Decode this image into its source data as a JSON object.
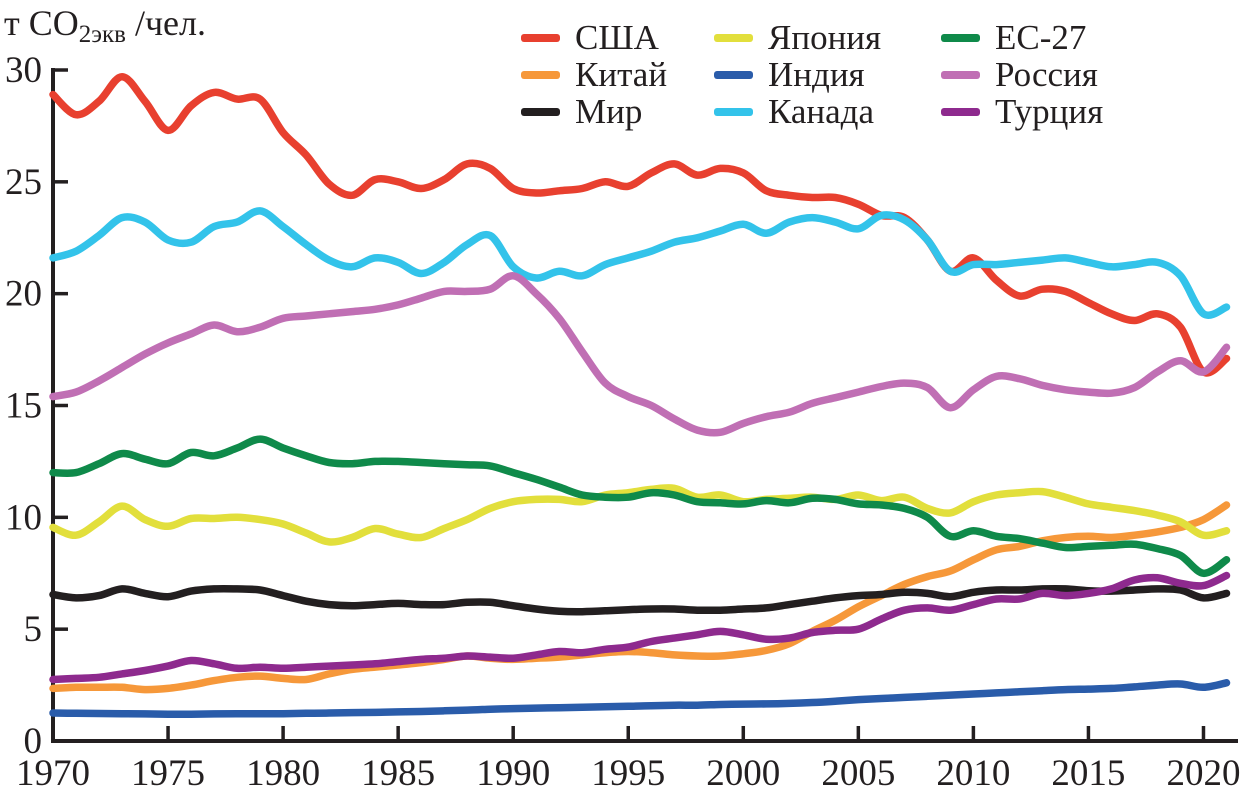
{
  "unit_label": {
    "prefix": "т CO",
    "subscript": "2экв",
    "suffix": " /чел."
  },
  "legend": {
    "items": [
      {
        "label": "США",
        "color": "#e8402f"
      },
      {
        "label": "Китай",
        "color": "#f6983a"
      },
      {
        "label": "Мир",
        "color": "#231f20"
      },
      {
        "label": "Япония",
        "color": "#e2df3c"
      },
      {
        "label": "Индия",
        "color": "#2a5caa"
      },
      {
        "label": "Канада",
        "color": "#33c3ea"
      },
      {
        "label": "ЕС-27",
        "color": "#0f8a4a"
      },
      {
        "label": "Россия",
        "color": "#c06fb4"
      },
      {
        "label": "Турция",
        "color": "#8e2a8e"
      }
    ]
  },
  "chart_data": {
    "type": "line",
    "title": "",
    "xlabel": "",
    "ylabel": "т CO2экв/чел.",
    "xlim": [
      1970,
      2021.5
    ],
    "ylim": [
      0,
      30
    ],
    "x_ticks": [
      1970,
      1975,
      1980,
      1985,
      1990,
      1995,
      2000,
      2005,
      2010,
      2015,
      2020
    ],
    "y_ticks": [
      0,
      5,
      10,
      15,
      20,
      25,
      30
    ],
    "grid": false,
    "legend_position": "top",
    "x": [
      1970,
      1971,
      1972,
      1973,
      1974,
      1975,
      1976,
      1977,
      1978,
      1979,
      1980,
      1981,
      1982,
      1983,
      1984,
      1985,
      1986,
      1987,
      1988,
      1989,
      1990,
      1991,
      1992,
      1993,
      1994,
      1995,
      1996,
      1997,
      1998,
      1999,
      2000,
      2001,
      2002,
      2003,
      2004,
      2005,
      2006,
      2007,
      2008,
      2009,
      2010,
      2011,
      2012,
      2013,
      2014,
      2015,
      2016,
      2017,
      2018,
      2019,
      2020,
      2021
    ],
    "draw_order": [
      "Индия",
      "Китай",
      "Мир",
      "Япония",
      "ЕС-27",
      "Турция",
      "США",
      "Канада",
      "Россия"
    ],
    "series": [
      {
        "name": "США",
        "color": "#e8402f",
        "values": [
          28.9,
          28.0,
          28.6,
          29.7,
          28.6,
          27.3,
          28.4,
          29.0,
          28.7,
          28.7,
          27.2,
          26.2,
          24.9,
          24.4,
          25.1,
          25.0,
          24.7,
          25.1,
          25.8,
          25.6,
          24.7,
          24.5,
          24.6,
          24.7,
          25.0,
          24.8,
          25.4,
          25.8,
          25.3,
          25.6,
          25.4,
          24.6,
          24.4,
          24.3,
          24.3,
          24.0,
          23.5,
          23.4,
          22.4,
          21.0,
          21.6,
          20.6,
          19.9,
          20.2,
          20.1,
          19.6,
          19.1,
          18.8,
          19.1,
          18.5,
          16.5,
          17.1
        ]
      },
      {
        "name": "Китай",
        "color": "#f6983a",
        "values": [
          2.35,
          2.4,
          2.4,
          2.4,
          2.3,
          2.35,
          2.5,
          2.7,
          2.85,
          2.9,
          2.8,
          2.75,
          3.0,
          3.2,
          3.3,
          3.4,
          3.5,
          3.65,
          3.8,
          3.7,
          3.65,
          3.7,
          3.75,
          3.85,
          3.95,
          4.0,
          3.95,
          3.85,
          3.8,
          3.8,
          3.9,
          4.05,
          4.35,
          4.9,
          5.4,
          6.0,
          6.5,
          7.0,
          7.35,
          7.6,
          8.1,
          8.55,
          8.7,
          8.95,
          9.1,
          9.15,
          9.1,
          9.2,
          9.35,
          9.55,
          9.9,
          10.55
        ]
      },
      {
        "name": "Мир",
        "color": "#231f20",
        "values": [
          6.55,
          6.4,
          6.5,
          6.8,
          6.6,
          6.45,
          6.7,
          6.8,
          6.8,
          6.75,
          6.5,
          6.25,
          6.1,
          6.05,
          6.1,
          6.15,
          6.1,
          6.1,
          6.2,
          6.2,
          6.05,
          5.9,
          5.8,
          5.78,
          5.82,
          5.87,
          5.9,
          5.9,
          5.85,
          5.85,
          5.9,
          5.95,
          6.1,
          6.25,
          6.4,
          6.5,
          6.55,
          6.65,
          6.6,
          6.45,
          6.65,
          6.75,
          6.75,
          6.8,
          6.8,
          6.72,
          6.7,
          6.75,
          6.8,
          6.75,
          6.4,
          6.6
        ]
      },
      {
        "name": "Япония",
        "color": "#e2df3c",
        "values": [
          9.55,
          9.2,
          9.8,
          10.5,
          9.9,
          9.6,
          9.95,
          9.95,
          10.0,
          9.9,
          9.7,
          9.3,
          8.9,
          9.1,
          9.5,
          9.25,
          9.1,
          9.5,
          9.9,
          10.4,
          10.7,
          10.8,
          10.8,
          10.7,
          11.0,
          11.1,
          11.25,
          11.3,
          10.9,
          11.0,
          10.7,
          10.8,
          10.85,
          10.9,
          10.8,
          11.0,
          10.75,
          10.9,
          10.4,
          10.2,
          10.7,
          11.0,
          11.1,
          11.15,
          10.9,
          10.6,
          10.45,
          10.3,
          10.1,
          9.8,
          9.2,
          9.4
        ]
      },
      {
        "name": "Индия",
        "color": "#2a5caa",
        "values": [
          1.25,
          1.24,
          1.23,
          1.22,
          1.21,
          1.2,
          1.2,
          1.21,
          1.22,
          1.22,
          1.22,
          1.24,
          1.25,
          1.27,
          1.28,
          1.3,
          1.32,
          1.35,
          1.38,
          1.42,
          1.45,
          1.47,
          1.49,
          1.51,
          1.53,
          1.55,
          1.58,
          1.6,
          1.6,
          1.63,
          1.65,
          1.66,
          1.68,
          1.72,
          1.78,
          1.85,
          1.9,
          1.95,
          2.0,
          2.05,
          2.1,
          2.15,
          2.2,
          2.25,
          2.3,
          2.32,
          2.35,
          2.42,
          2.5,
          2.55,
          2.4,
          2.6
        ]
      },
      {
        "name": "Канада",
        "color": "#33c3ea",
        "values": [
          21.6,
          21.9,
          22.6,
          23.4,
          23.2,
          22.4,
          22.3,
          23.0,
          23.2,
          23.7,
          23.0,
          22.2,
          21.5,
          21.2,
          21.6,
          21.4,
          20.9,
          21.4,
          22.2,
          22.6,
          21.2,
          20.7,
          21.0,
          20.8,
          21.3,
          21.6,
          21.9,
          22.3,
          22.5,
          22.8,
          23.1,
          22.7,
          23.2,
          23.4,
          23.2,
          22.9,
          23.5,
          23.3,
          22.4,
          21.0,
          21.3,
          21.3,
          21.4,
          21.5,
          21.6,
          21.4,
          21.2,
          21.3,
          21.4,
          20.8,
          19.1,
          19.4
        ]
      },
      {
        "name": "ЕС-27",
        "color": "#0f8a4a",
        "values": [
          12.0,
          12.0,
          12.4,
          12.85,
          12.6,
          12.4,
          12.9,
          12.75,
          13.1,
          13.5,
          13.1,
          12.75,
          12.45,
          12.4,
          12.5,
          12.5,
          12.45,
          12.4,
          12.35,
          12.3,
          12.0,
          11.7,
          11.35,
          11.0,
          10.9,
          10.9,
          11.1,
          11.0,
          10.7,
          10.65,
          10.6,
          10.75,
          10.65,
          10.85,
          10.8,
          10.6,
          10.55,
          10.4,
          10.0,
          9.15,
          9.4,
          9.15,
          9.05,
          8.85,
          8.65,
          8.7,
          8.75,
          8.8,
          8.6,
          8.3,
          7.5,
          8.1
        ]
      },
      {
        "name": "Россия",
        "color": "#c06fb4",
        "values": [
          15.4,
          15.6,
          16.1,
          16.7,
          17.3,
          17.8,
          18.2,
          18.6,
          18.3,
          18.5,
          18.9,
          19.0,
          19.1,
          19.2,
          19.3,
          19.5,
          19.8,
          20.1,
          20.1,
          20.2,
          20.8,
          20.0,
          18.9,
          17.4,
          16.0,
          15.4,
          15.0,
          14.4,
          13.9,
          13.8,
          14.2,
          14.5,
          14.7,
          15.1,
          15.35,
          15.6,
          15.85,
          16.0,
          15.8,
          14.9,
          15.7,
          16.3,
          16.2,
          15.9,
          15.7,
          15.6,
          15.55,
          15.8,
          16.5,
          17.0,
          16.5,
          17.6
        ]
      },
      {
        "name": "Турция",
        "color": "#8e2a8e",
        "values": [
          2.75,
          2.8,
          2.85,
          3.0,
          3.15,
          3.35,
          3.6,
          3.45,
          3.25,
          3.3,
          3.25,
          3.3,
          3.35,
          3.4,
          3.45,
          3.55,
          3.65,
          3.7,
          3.8,
          3.75,
          3.7,
          3.85,
          4.0,
          3.95,
          4.1,
          4.2,
          4.45,
          4.6,
          4.75,
          4.9,
          4.75,
          4.55,
          4.6,
          4.85,
          4.95,
          5.0,
          5.45,
          5.85,
          5.95,
          5.85,
          6.1,
          6.35,
          6.35,
          6.6,
          6.5,
          6.6,
          6.8,
          7.2,
          7.3,
          7.05,
          6.95,
          7.4
        ]
      }
    ]
  }
}
